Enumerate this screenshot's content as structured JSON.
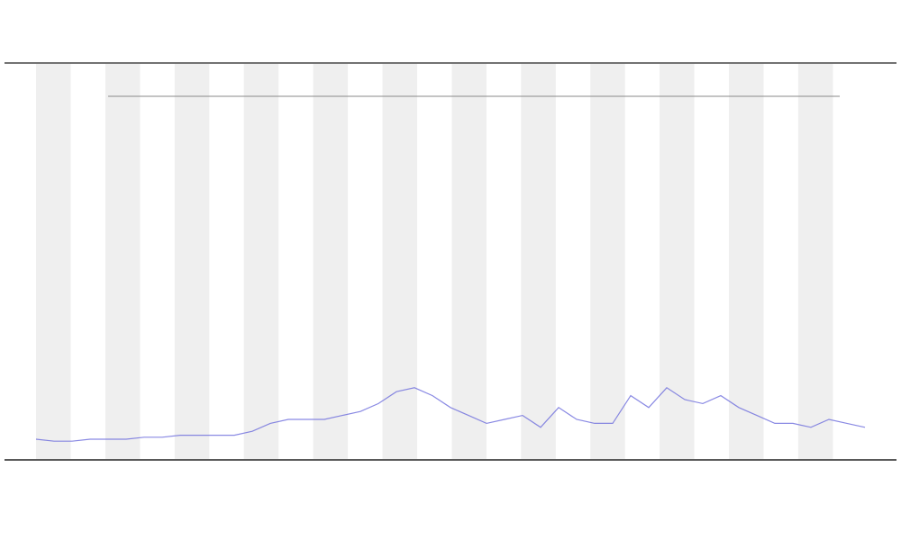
{
  "chart_data": {
    "type": "line",
    "series": [
      {
        "color": "#6b6bdc",
        "values": [
          5,
          4.5,
          4.5,
          5,
          5,
          5,
          5.5,
          5.5,
          6,
          6,
          6,
          6,
          7,
          9,
          10,
          10,
          10,
          11,
          12,
          14,
          17,
          18,
          16,
          13,
          11,
          9,
          10,
          11,
          8,
          13,
          10,
          9,
          9,
          16,
          13,
          18,
          15,
          14,
          16,
          13,
          11,
          9,
          9,
          8,
          10,
          9,
          8
        ]
      }
    ],
    "ylim": [
      0,
      100
    ]
  }
}
